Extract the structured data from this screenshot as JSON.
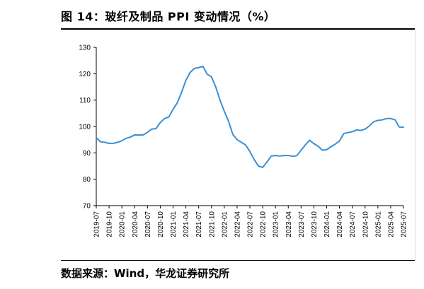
{
  "title": "图 14：玻纤及制品 PPI 变动情况（%）",
  "source": "数据来源：Wind，华龙证券研究所",
  "colors": {
    "line": "#3A8FD3",
    "axis": "#000000"
  },
  "chart_data": {
    "type": "line",
    "title": "",
    "xlabel": "",
    "ylabel": "",
    "ylim": [
      70,
      130
    ],
    "yticks": [
      70,
      80,
      90,
      100,
      110,
      120,
      130
    ],
    "grid": false,
    "legend": "none",
    "xtick_labels": [
      "2019-07",
      "2019-10",
      "2020-01",
      "2020-04",
      "2020-07",
      "2020-10",
      "2021-01",
      "2021-04",
      "2021-07",
      "2021-10",
      "2022-01",
      "2022-04",
      "2022-07",
      "2022-10",
      "2023-01",
      "2023-04",
      "2023-07",
      "2023-10",
      "2024-01",
      "2024-04",
      "2024-07",
      "2024-10",
      "2025-01",
      "2025-04",
      "2025-07"
    ],
    "series": [
      {
        "x": [
          "2019-07",
          "2019-08",
          "2019-09",
          "2019-10",
          "2019-11",
          "2019-12",
          "2020-01",
          "2020-02",
          "2020-03",
          "2020-04",
          "2020-05",
          "2020-06",
          "2020-07",
          "2020-08",
          "2020-09",
          "2020-10",
          "2020-11",
          "2020-12",
          "2021-01",
          "2021-02",
          "2021-03",
          "2021-04",
          "2021-05",
          "2021-06",
          "2021-07",
          "2021-08",
          "2021-09",
          "2021-10",
          "2021-11",
          "2021-12",
          "2022-01",
          "2022-02",
          "2022-03",
          "2022-04",
          "2022-05",
          "2022-06",
          "2022-07",
          "2022-08",
          "2022-09",
          "2022-10",
          "2022-11",
          "2022-12",
          "2023-01",
          "2023-02",
          "2023-03",
          "2023-04",
          "2023-05",
          "2023-06",
          "2023-07",
          "2023-08",
          "2023-09",
          "2023-10",
          "2023-11",
          "2023-12",
          "2024-01",
          "2024-02",
          "2024-03",
          "2024-04",
          "2024-05",
          "2024-06",
          "2024-07",
          "2024-08",
          "2024-09",
          "2024-10",
          "2024-11",
          "2024-12",
          "2025-01",
          "2025-02",
          "2025-03",
          "2025-04",
          "2025-05",
          "2025-06",
          "2025-07"
        ],
        "values": [
          95.8,
          94.2,
          94.0,
          93.6,
          93.6,
          94.0,
          94.6,
          95.5,
          96.0,
          96.8,
          96.8,
          96.8,
          97.8,
          99.0,
          99.2,
          101.5,
          103.0,
          103.6,
          106.5,
          109.0,
          113.0,
          117.5,
          120.5,
          122.0,
          122.3,
          122.8,
          119.8,
          118.8,
          115.0,
          110.0,
          105.8,
          102.0,
          97.0,
          95.0,
          94.0,
          93.0,
          90.5,
          87.5,
          85.0,
          84.5,
          86.5,
          88.8,
          89.0,
          88.8,
          89.0,
          89.0,
          88.7,
          88.9,
          91.0,
          93.0,
          94.8,
          93.5,
          92.5,
          91.0,
          91.2,
          92.3,
          93.3,
          94.5,
          97.3,
          97.7,
          98.0,
          98.7,
          98.5,
          99.0,
          100.2,
          101.8,
          102.3,
          102.5,
          103.0,
          103.0,
          102.6,
          99.8,
          99.7
        ]
      }
    ]
  }
}
